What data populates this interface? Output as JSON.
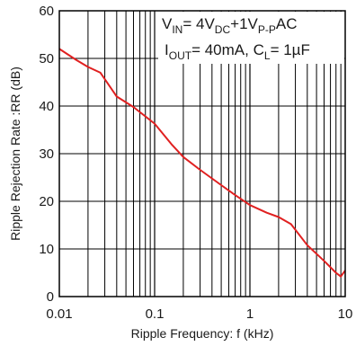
{
  "chart_data": {
    "type": "line",
    "title": "",
    "xlabel": "Ripple Frequency: f (kHz)",
    "ylabel": "Ripple Rejection Rate :RR (dB)",
    "x_scale": "log",
    "xlim": [
      0.01,
      10
    ],
    "ylim": [
      0,
      60
    ],
    "x_tick_labels": [
      "0.01",
      "0.1",
      "1",
      "10"
    ],
    "y_tick_labels": [
      "0",
      "10",
      "20",
      "30",
      "40",
      "50",
      "60"
    ],
    "grid": true,
    "line_color": "#e02020",
    "annotation": {
      "line1": {
        "a": "V",
        "a_sub": "IN",
        "b": "= 4V",
        "b_sub": "DC",
        "c": "+1V",
        "c_sub": "P-P",
        "d": "AC"
      },
      "line2": {
        "a": "I",
        "a_sub": "OUT",
        "b": "= 40mA, C",
        "b_sub": "L",
        "c": "= 1µF"
      }
    },
    "series": [
      {
        "x": [
          0.01,
          0.015,
          0.02,
          0.027,
          0.04,
          0.06,
          0.1,
          0.15,
          0.2,
          0.3,
          0.5,
          0.7,
          1.0,
          1.5,
          2.0,
          2.7,
          4.0,
          6.0,
          8.0,
          9.0,
          10.0
        ],
        "y": [
          52,
          49.7,
          48.2,
          47,
          42,
          39.8,
          36.3,
          32,
          29.3,
          26.6,
          23.4,
          21.3,
          19.2,
          17.6,
          16.7,
          15.2,
          10.8,
          7.5,
          5.0,
          4.2,
          5.5
        ]
      }
    ]
  }
}
